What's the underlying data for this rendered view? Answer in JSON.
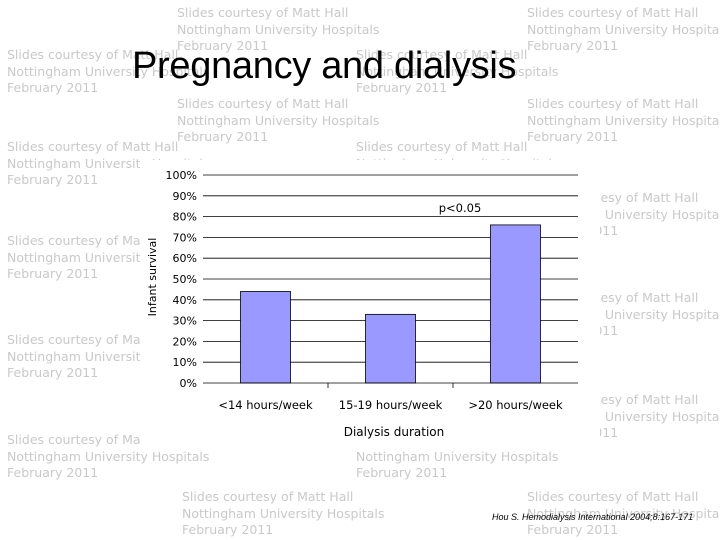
{
  "slide": {
    "title": "Pregnancy and dialysis",
    "citation": "Hou S. Hemodialysis International 2004;8:167-171",
    "watermark": "Slides courtesy of Matt Hall\nNottingham University Hospitals\nFebruary 2011"
  },
  "chart_data": {
    "type": "bar",
    "categories": [
      "<14 hours/week",
      "15-19 hours/week",
      ">20 hours/week"
    ],
    "values": [
      44,
      33,
      76
    ],
    "xlabel": "Dialysis duration",
    "ylabel": "Infant survival",
    "ylim": [
      0,
      100
    ],
    "yticks": [
      "0%",
      "10%",
      "20%",
      "30%",
      "40%",
      "50%",
      "60%",
      "70%",
      "80%",
      "90%",
      "100%"
    ],
    "annotation": "p<0.05",
    "grid": true,
    "bar_color": "#9999ff"
  }
}
